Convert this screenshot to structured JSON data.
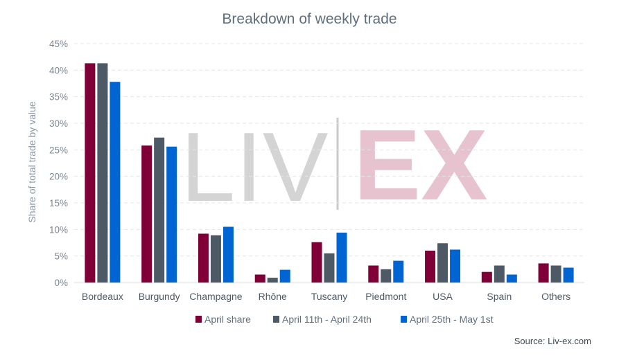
{
  "chart_data": {
    "type": "bar",
    "title": "Breakdown of weekly trade",
    "xlabel": "",
    "ylabel": "Share of total trade by value",
    "ylim": [
      0,
      45
    ],
    "yticks": [
      "0%",
      "5%",
      "10%",
      "15%",
      "20%",
      "25%",
      "30%",
      "35%",
      "40%",
      "45%"
    ],
    "grid": true,
    "legend_position": "bottom",
    "categories": [
      "Bordeaux",
      "Burgundy",
      "Champagne",
      "Rhône",
      "Tuscany",
      "Piedmont",
      "USA",
      "Spain",
      "Others"
    ],
    "series": [
      {
        "name": "April share",
        "color": "#7f0037",
        "values": [
          41.3,
          25.8,
          9.2,
          1.5,
          7.6,
          3.2,
          6.0,
          2.0,
          3.6
        ]
      },
      {
        "name": "April 11th - April 24th",
        "color": "#4d5a66",
        "values": [
          41.3,
          27.3,
          8.9,
          0.9,
          5.5,
          2.5,
          7.4,
          3.2,
          3.2
        ]
      },
      {
        "name": "April 25th - May 1st",
        "color": "#0064d2",
        "values": [
          37.8,
          25.6,
          10.5,
          2.4,
          9.4,
          4.1,
          6.2,
          1.5,
          2.8
        ]
      }
    ],
    "watermark": "LIV|EX",
    "source": "Source: Liv-ex.com"
  }
}
